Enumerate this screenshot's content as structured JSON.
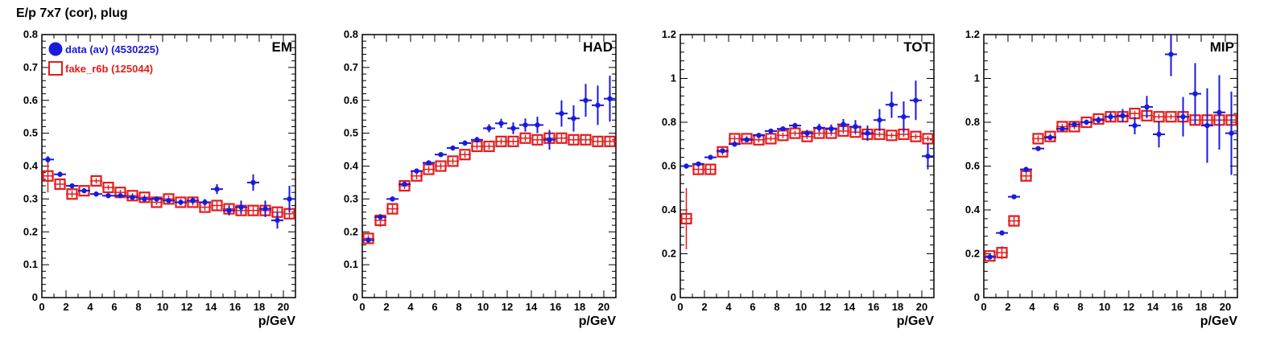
{
  "page_title": "E/p 7x7 (cor), plug",
  "colors": {
    "data": "#1a1adb",
    "fake": "#e11d1d",
    "axis": "#000000"
  },
  "legend": {
    "entries": [
      {
        "label": "data (av) (4530225)",
        "marker": "filled-circle",
        "color": "#1a1adb"
      },
      {
        "label": "fake_r6b (125044)",
        "marker": "open-square",
        "color": "#e11d1d"
      }
    ]
  },
  "chart_data": [
    {
      "type": "scatter",
      "panel_label": "EM",
      "xlabel": "p/GeV",
      "xlim": [
        0,
        21
      ],
      "ylim": [
        0,
        0.8
      ],
      "xticks": [
        0,
        2,
        4,
        6,
        8,
        10,
        12,
        14,
        16,
        18,
        20
      ],
      "yticks": [
        0,
        0.1,
        0.2,
        0.3,
        0.4,
        0.5,
        0.6,
        0.7,
        0.8
      ],
      "ytick_labels": [
        "0",
        "0.1",
        "0.2",
        "0.3",
        "0.4",
        "0.5",
        "0.6",
        "0.7",
        "0.8"
      ],
      "series": [
        {
          "name": "data (av) (4530225)",
          "marker": "filled-circle",
          "x": [
            0.5,
            1.5,
            2.5,
            3.5,
            4.5,
            5.5,
            6.5,
            7.5,
            8.5,
            9.5,
            10.5,
            11.5,
            12.5,
            13.5,
            14.5,
            15.5,
            16.5,
            17.5,
            18.5,
            19.5,
            20.5
          ],
          "y": [
            0.42,
            0.375,
            0.34,
            0.325,
            0.315,
            0.31,
            0.31,
            0.305,
            0.3,
            0.3,
            0.295,
            0.29,
            0.295,
            0.29,
            0.33,
            0.265,
            0.275,
            0.35,
            0.27,
            0.235,
            0.3
          ],
          "err": [
            0.01,
            0.008,
            0.006,
            0.006,
            0.006,
            0.005,
            0.005,
            0.006,
            0.006,
            0.006,
            0.007,
            0.008,
            0.01,
            0.01,
            0.015,
            0.015,
            0.02,
            0.025,
            0.025,
            0.025,
            0.04
          ]
        },
        {
          "name": "fake_r6b (125044)",
          "marker": "open-square",
          "x": [
            0.5,
            1.5,
            2.5,
            3.5,
            4.5,
            5.5,
            6.5,
            7.5,
            8.5,
            9.5,
            10.5,
            11.5,
            12.5,
            13.5,
            14.5,
            15.5,
            16.5,
            17.5,
            18.5,
            19.5,
            20.5
          ],
          "y": [
            0.37,
            0.345,
            0.315,
            0.325,
            0.355,
            0.335,
            0.32,
            0.31,
            0.305,
            0.29,
            0.3,
            0.29,
            0.29,
            0.275,
            0.28,
            0.27,
            0.265,
            0.265,
            0.265,
            0.26,
            0.255
          ],
          "err": [
            0.05,
            0.015,
            0.01,
            0.008,
            0.008,
            0.008,
            0.008,
            0.008,
            0.008,
            0.008,
            0.01,
            0.01,
            0.01,
            0.01,
            0.012,
            0.012,
            0.012,
            0.012,
            0.015,
            0.015,
            0.015
          ]
        }
      ]
    },
    {
      "type": "scatter",
      "panel_label": "HAD",
      "xlabel": "p/GeV",
      "xlim": [
        0,
        21
      ],
      "ylim": [
        0,
        0.8
      ],
      "xticks": [
        0,
        2,
        4,
        6,
        8,
        10,
        12,
        14,
        16,
        18,
        20
      ],
      "yticks": [
        0,
        0.1,
        0.2,
        0.3,
        0.4,
        0.5,
        0.6,
        0.7,
        0.8
      ],
      "ytick_labels": [
        "0",
        "0.1",
        "0.2",
        "0.3",
        "0.4",
        "0.5",
        "0.6",
        "0.7",
        "0.8"
      ],
      "series": [
        {
          "name": "data (av) (4530225)",
          "marker": "filled-circle",
          "x": [
            0.5,
            1.5,
            2.5,
            3.5,
            4.5,
            5.5,
            6.5,
            7.5,
            8.5,
            9.5,
            10.5,
            11.5,
            12.5,
            13.5,
            14.5,
            15.5,
            16.5,
            17.5,
            18.5,
            19.5,
            20.5
          ],
          "y": [
            0.175,
            0.245,
            0.3,
            0.345,
            0.385,
            0.41,
            0.435,
            0.455,
            0.47,
            0.48,
            0.515,
            0.53,
            0.515,
            0.525,
            0.525,
            0.48,
            0.56,
            0.545,
            0.6,
            0.585,
            0.605
          ],
          "err": [
            0.005,
            0.006,
            0.006,
            0.006,
            0.006,
            0.006,
            0.006,
            0.007,
            0.008,
            0.009,
            0.012,
            0.014,
            0.018,
            0.02,
            0.025,
            0.03,
            0.04,
            0.04,
            0.05,
            0.06,
            0.07
          ]
        },
        {
          "name": "fake_r6b (125044)",
          "marker": "open-square",
          "x": [
            0.5,
            1.5,
            2.5,
            3.5,
            4.5,
            5.5,
            6.5,
            7.5,
            8.5,
            9.5,
            10.5,
            11.5,
            12.5,
            13.5,
            14.5,
            15.5,
            16.5,
            17.5,
            18.5,
            19.5,
            20.5
          ],
          "y": [
            0.18,
            0.235,
            0.27,
            0.34,
            0.37,
            0.39,
            0.4,
            0.415,
            0.435,
            0.46,
            0.46,
            0.475,
            0.475,
            0.485,
            0.48,
            0.485,
            0.485,
            0.48,
            0.48,
            0.475,
            0.475
          ],
          "err": [
            0.01,
            0.02,
            0.015,
            0.01,
            0.01,
            0.01,
            0.01,
            0.01,
            0.01,
            0.01,
            0.01,
            0.01,
            0.01,
            0.01,
            0.012,
            0.012,
            0.012,
            0.012,
            0.012,
            0.012,
            0.012
          ]
        }
      ]
    },
    {
      "type": "scatter",
      "panel_label": "TOT",
      "xlabel": "p/GeV",
      "xlim": [
        0,
        21
      ],
      "ylim": [
        0,
        1.2
      ],
      "xticks": [
        0,
        2,
        4,
        6,
        8,
        10,
        12,
        14,
        16,
        18,
        20
      ],
      "yticks": [
        0,
        0.2,
        0.4,
        0.6,
        0.8,
        1.0,
        1.2
      ],
      "ytick_labels": [
        "0",
        "0.2",
        "0.4",
        "0.6",
        "0.8",
        "1",
        "1.2"
      ],
      "series": [
        {
          "name": "data (av) (4530225)",
          "marker": "filled-circle",
          "x": [
            0.5,
            1.5,
            2.5,
            3.5,
            4.5,
            5.5,
            6.5,
            7.5,
            8.5,
            9.5,
            10.5,
            11.5,
            12.5,
            13.5,
            14.5,
            15.5,
            16.5,
            17.5,
            18.5,
            19.5,
            20.5
          ],
          "y": [
            0.6,
            0.61,
            0.64,
            0.67,
            0.7,
            0.72,
            0.74,
            0.76,
            0.77,
            0.785,
            0.75,
            0.775,
            0.77,
            0.79,
            0.78,
            0.75,
            0.81,
            0.88,
            0.825,
            0.9,
            0.645
          ],
          "err": [
            0.008,
            0.008,
            0.008,
            0.008,
            0.008,
            0.008,
            0.008,
            0.01,
            0.01,
            0.012,
            0.015,
            0.018,
            0.02,
            0.025,
            0.03,
            0.035,
            0.05,
            0.06,
            0.07,
            0.09,
            0.06
          ]
        },
        {
          "name": "fake_r6b (125044)",
          "marker": "open-square",
          "x": [
            0.5,
            1.5,
            2.5,
            3.5,
            4.5,
            5.5,
            6.5,
            7.5,
            8.5,
            9.5,
            10.5,
            11.5,
            12.5,
            13.5,
            14.5,
            15.5,
            16.5,
            17.5,
            18.5,
            19.5,
            20.5
          ],
          "y": [
            0.36,
            0.585,
            0.585,
            0.665,
            0.725,
            0.725,
            0.72,
            0.725,
            0.74,
            0.75,
            0.735,
            0.75,
            0.75,
            0.76,
            0.755,
            0.745,
            0.745,
            0.74,
            0.745,
            0.735,
            0.725
          ],
          "err": [
            0.14,
            0.02,
            0.02,
            0.015,
            0.015,
            0.012,
            0.012,
            0.012,
            0.012,
            0.012,
            0.012,
            0.012,
            0.012,
            0.012,
            0.012,
            0.012,
            0.012,
            0.012,
            0.012,
            0.012,
            0.012
          ]
        }
      ]
    },
    {
      "type": "scatter",
      "panel_label": "MIP",
      "xlabel": "p/GeV",
      "xlim": [
        0,
        21
      ],
      "ylim": [
        0,
        1.2
      ],
      "xticks": [
        0,
        2,
        4,
        6,
        8,
        10,
        12,
        14,
        16,
        18,
        20
      ],
      "yticks": [
        0,
        0.2,
        0.4,
        0.6,
        0.8,
        1.0,
        1.2
      ],
      "ytick_labels": [
        "0",
        "0.2",
        "0.4",
        "0.6",
        "0.8",
        "1",
        "1.2"
      ],
      "series": [
        {
          "name": "data (av) (4530225)",
          "marker": "filled-circle",
          "x": [
            0.5,
            1.5,
            2.5,
            3.5,
            4.5,
            5.5,
            6.5,
            7.5,
            8.5,
            9.5,
            10.5,
            11.5,
            12.5,
            13.5,
            14.5,
            15.5,
            16.5,
            17.5,
            18.5,
            19.5,
            20.5
          ],
          "y": [
            0.185,
            0.295,
            0.46,
            0.585,
            0.68,
            0.73,
            0.77,
            0.79,
            0.8,
            0.81,
            0.825,
            0.83,
            0.785,
            0.87,
            0.745,
            1.11,
            0.825,
            0.93,
            0.785,
            0.845,
            0.75
          ],
          "err": [
            0.005,
            0.006,
            0.008,
            0.008,
            0.008,
            0.008,
            0.01,
            0.01,
            0.012,
            0.015,
            0.02,
            0.03,
            0.04,
            0.05,
            0.06,
            0.1,
            0.09,
            0.14,
            0.17,
            0.17,
            0.19
          ]
        },
        {
          "name": "fake_r6b (125044)",
          "marker": "open-square",
          "x": [
            0.5,
            1.5,
            2.5,
            3.5,
            4.5,
            5.5,
            6.5,
            7.5,
            8.5,
            9.5,
            10.5,
            11.5,
            12.5,
            13.5,
            14.5,
            15.5,
            16.5,
            17.5,
            18.5,
            19.5,
            20.5
          ],
          "y": [
            0.19,
            0.205,
            0.35,
            0.555,
            0.725,
            0.735,
            0.78,
            0.78,
            0.8,
            0.815,
            0.825,
            0.825,
            0.84,
            0.83,
            0.825,
            0.825,
            0.825,
            0.81,
            0.81,
            0.81,
            0.81
          ],
          "err": [
            0.01,
            0.03,
            0.02,
            0.02,
            0.015,
            0.015,
            0.012,
            0.012,
            0.012,
            0.012,
            0.012,
            0.012,
            0.012,
            0.012,
            0.012,
            0.012,
            0.012,
            0.012,
            0.012,
            0.012,
            0.012
          ]
        }
      ]
    }
  ]
}
